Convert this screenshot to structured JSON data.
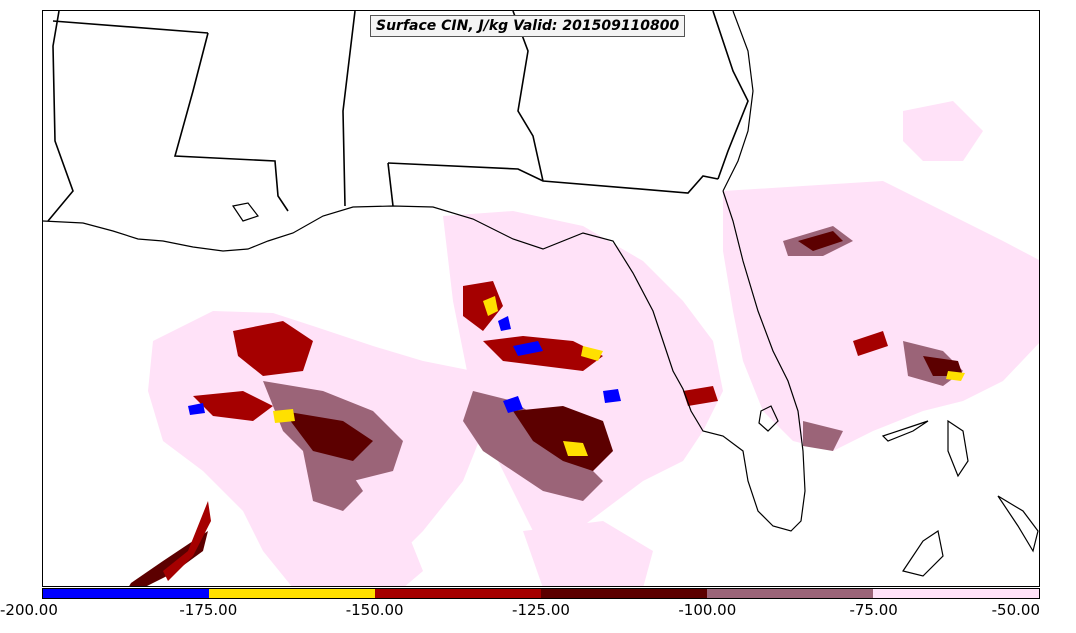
{
  "title": "Surface CIN, J/kg Valid: 201509110800",
  "colorbar": {
    "segments": [
      {
        "from": -200,
        "to": -175,
        "color": "#0000ff"
      },
      {
        "from": -175,
        "to": -150,
        "color": "#ffe000"
      },
      {
        "from": -150,
        "to": -125,
        "color": "#a50000"
      },
      {
        "from": -125,
        "to": -100,
        "color": "#5c0000"
      },
      {
        "from": -100,
        "to": -75,
        "color": "#9b6478"
      },
      {
        "from": -75,
        "to": -50,
        "color": "#ffe2f8"
      }
    ],
    "ticks": [
      "-200.00",
      "-175.00",
      "-150.00",
      "-125.00",
      "-100.00",
      "-75.00",
      "-50.00"
    ]
  }
}
